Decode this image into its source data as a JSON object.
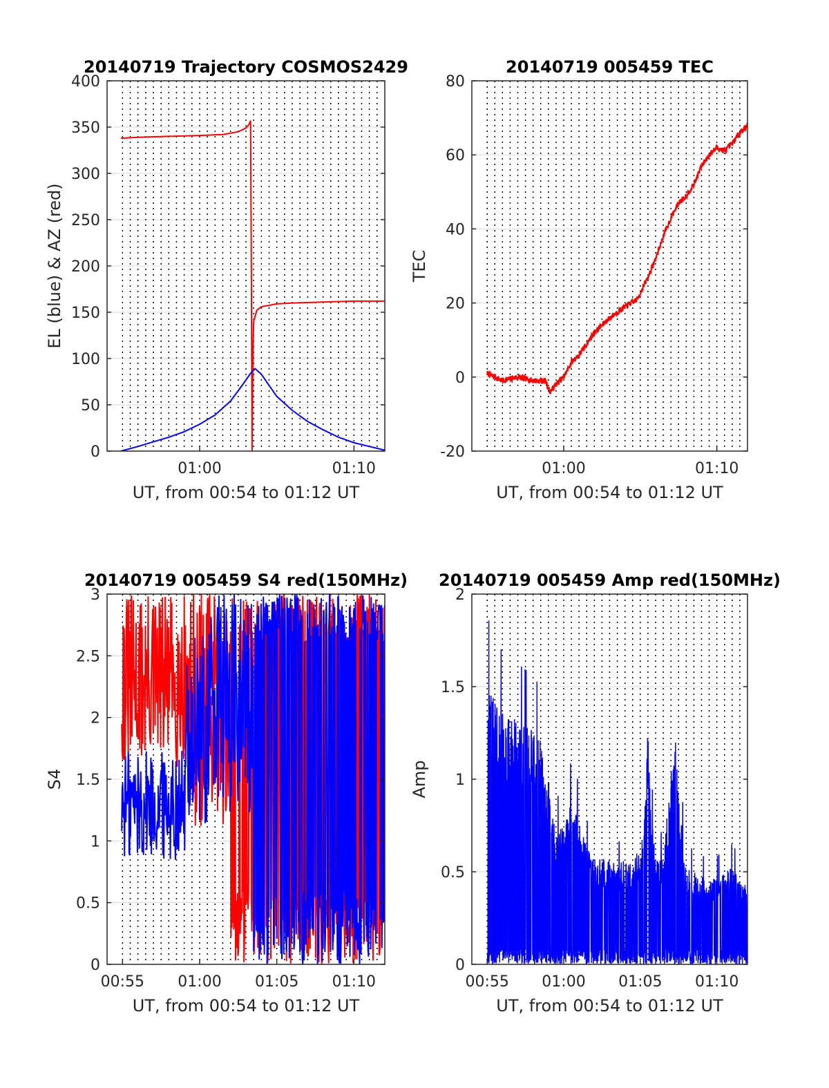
{
  "colors": {
    "red": "#ff0000",
    "blue": "#0000ff",
    "grid": "#d9d9d9",
    "axis": "#262626"
  },
  "chart_data": [
    {
      "type": "line",
      "title": "20140719 Trajectory COSMOS2429",
      "xlabel": "UT, from 00:54 to 01:12 UT",
      "ylabel": "EL (blue) & AZ (red)",
      "xlim_minutes": [
        54,
        72
      ],
      "ylim": [
        0,
        400
      ],
      "yticks": [
        0,
        50,
        100,
        150,
        200,
        250,
        300,
        350,
        400
      ],
      "xtick_labels": [
        {
          "x": 60,
          "label": "01:00"
        },
        {
          "x": 70,
          "label": "01:10"
        }
      ],
      "grid": "horizontal solid, vertical dotted every 30 s",
      "series": [
        {
          "color": "red",
          "points": [
            [
              54.9,
              338
            ],
            [
              56,
              339
            ],
            [
              58,
              340
            ],
            [
              60,
              341
            ],
            [
              61.5,
              342
            ],
            [
              62.5,
              345
            ],
            [
              63,
              349
            ],
            [
              63.2,
              353
            ],
            [
              63.3,
              357
            ],
            [
              63.35,
              200
            ],
            [
              63.4,
              0
            ],
            [
              63.45,
              110
            ],
            [
              63.5,
              140
            ],
            [
              63.7,
              152
            ],
            [
              64,
              156
            ],
            [
              65,
              159
            ],
            [
              66,
              160
            ],
            [
              68,
              161
            ],
            [
              70,
              162
            ],
            [
              72,
              162
            ]
          ]
        },
        {
          "color": "blue",
          "points": [
            [
              54.9,
              0
            ],
            [
              56,
              5
            ],
            [
              57,
              10
            ],
            [
              58,
              15
            ],
            [
              59,
              21
            ],
            [
              60,
              29
            ],
            [
              61,
              39
            ],
            [
              62,
              54
            ],
            [
              62.8,
              72
            ],
            [
              63.3,
              84
            ],
            [
              63.6,
              89
            ],
            [
              64,
              83
            ],
            [
              64.5,
              71
            ],
            [
              65,
              59
            ],
            [
              66,
              44
            ],
            [
              67,
              32
            ],
            [
              68,
              23
            ],
            [
              69,
              15
            ],
            [
              70,
              9
            ],
            [
              71,
              5
            ],
            [
              72,
              1
            ]
          ]
        }
      ]
    },
    {
      "type": "line",
      "title": "20140719 005459 TEC",
      "xlabel": "UT, from 00:54 to 01:12 UT",
      "ylabel": "TEC",
      "xlim_minutes": [
        54,
        72
      ],
      "ylim": [
        -20,
        80
      ],
      "yticks": [
        -20,
        0,
        20,
        40,
        60,
        80
      ],
      "xtick_labels": [
        {
          "x": 60,
          "label": "01:00"
        },
        {
          "x": 70,
          "label": "01:10"
        }
      ],
      "grid": "horizontal solid, vertical dotted every 30 s",
      "series": [
        {
          "color": "red",
          "points": [
            [
              55,
              1
            ],
            [
              55.5,
              0
            ],
            [
              56,
              -1
            ],
            [
              57,
              0
            ],
            [
              58,
              -1
            ],
            [
              58.8,
              -1
            ],
            [
              59.1,
              -4
            ],
            [
              59.5,
              -2
            ],
            [
              60,
              0
            ],
            [
              60.5,
              4
            ],
            [
              61,
              6
            ],
            [
              62,
              12
            ],
            [
              63,
              16
            ],
            [
              64,
              19
            ],
            [
              64.8,
              21
            ],
            [
              65.5,
              27
            ],
            [
              66,
              32
            ],
            [
              66.5,
              38
            ],
            [
              67,
              43
            ],
            [
              67.5,
              47
            ],
            [
              68,
              49
            ],
            [
              68.5,
              52
            ],
            [
              69,
              57
            ],
            [
              69.5,
              60
            ],
            [
              70,
              62
            ],
            [
              70.5,
              61
            ],
            [
              71,
              63
            ],
            [
              71.5,
              66
            ],
            [
              72,
              68
            ]
          ]
        }
      ]
    },
    {
      "type": "line",
      "title": "20140719 005459 S4 red(150MHz)",
      "xlabel": "UT, from 00:54 to 01:12 UT",
      "ylabel": "S4",
      "xlim_minutes": [
        54,
        72
      ],
      "ylim": [
        0,
        3
      ],
      "yticks": [
        0,
        0.5,
        1,
        1.5,
        2,
        2.5,
        3
      ],
      "xtick_labels": [
        {
          "x": 55,
          "label": "00:55"
        },
        {
          "x": 60,
          "label": "01:00"
        },
        {
          "x": 65,
          "label": "01:05"
        },
        {
          "x": 70,
          "label": "01:10"
        }
      ],
      "grid": "horizontal solid, vertical dotted every 30 s",
      "series": [
        {
          "color": "red",
          "pattern": "noise",
          "segments": [
            {
              "x0": 54.95,
              "x1": 59.3,
              "low": 1.6,
              "high": 3.0
            },
            {
              "x0": 59.3,
              "x1": 62.0,
              "low": 1.1,
              "high": 3.0
            },
            {
              "x0": 62.0,
              "x1": 72.0,
              "low": 0.0,
              "high": 3.0
            }
          ]
        },
        {
          "color": "blue",
          "pattern": "noise",
          "segments": [
            {
              "x0": 54.95,
              "x1": 59.1,
              "low": 0.85,
              "high": 1.75
            },
            {
              "x0": 59.1,
              "x1": 60.5,
              "low": 1.0,
              "high": 2.7
            },
            {
              "x0": 60.5,
              "x1": 63.5,
              "low": 1.2,
              "high": 3.0
            },
            {
              "x0": 63.5,
              "x1": 72.0,
              "low": 0.0,
              "high": 3.0
            }
          ]
        }
      ]
    },
    {
      "type": "line",
      "title": "20140719 005459 Amp red(150MHz)",
      "xlabel": "UT, from 00:54 to 01:12 UT",
      "ylabel": "Amp",
      "xlim_minutes": [
        54,
        72
      ],
      "ylim": [
        0,
        2
      ],
      "yticks": [
        0,
        0.5,
        1,
        1.5,
        2
      ],
      "xtick_labels": [
        {
          "x": 55,
          "label": "00:55"
        },
        {
          "x": 60,
          "label": "01:00"
        },
        {
          "x": 65,
          "label": "01:05"
        },
        {
          "x": 70,
          "label": "01:10"
        }
      ],
      "grid": "horizontal solid, vertical dotted every 30 s",
      "series": [
        {
          "color": "blue",
          "pattern": "spiky-envelope",
          "envelope": [
            [
              55,
              1.45
            ],
            [
              55.5,
              1.35
            ],
            [
              56,
              1.3
            ],
            [
              57,
              1.25
            ],
            [
              58,
              1.2
            ],
            [
              58.5,
              1.15
            ],
            [
              59,
              0.95
            ],
            [
              59.5,
              0.7
            ],
            [
              60,
              0.7
            ],
            [
              60.5,
              0.85
            ],
            [
              61,
              0.75
            ],
            [
              61.5,
              0.6
            ],
            [
              62,
              0.55
            ],
            [
              63,
              0.55
            ],
            [
              63.5,
              0.5
            ],
            [
              64,
              0.55
            ],
            [
              64.5,
              0.55
            ],
            [
              65,
              0.6
            ],
            [
              65.3,
              0.8
            ],
            [
              65.5,
              1.25
            ],
            [
              65.7,
              0.8
            ],
            [
              66,
              0.55
            ],
            [
              66.5,
              0.55
            ],
            [
              67,
              1.0
            ],
            [
              67.3,
              1.15
            ],
            [
              67.6,
              0.8
            ],
            [
              68,
              0.5
            ],
            [
              69,
              0.45
            ],
            [
              70,
              0.45
            ],
            [
              71,
              0.5
            ],
            [
              72,
              0.4
            ]
          ]
        }
      ]
    }
  ]
}
